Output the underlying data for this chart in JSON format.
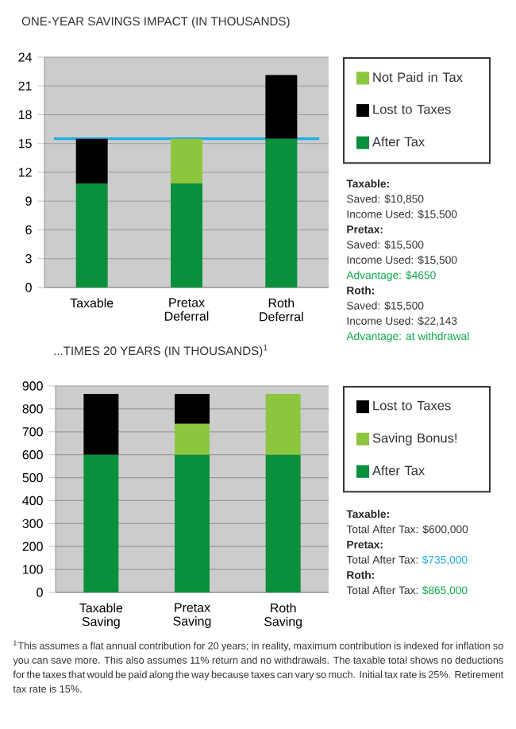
{
  "chart_data": [
    {
      "type": "bar",
      "title": "ONE-YEAR SAVINGS IMPACT (IN THOUSANDS)",
      "stacked": true,
      "grid": "y",
      "legend": "right",
      "categories": [
        "Taxable",
        "Pretax Deferral",
        "Roth Deferral"
      ],
      "series": [
        {
          "name": "After Tax",
          "color": "#0a8f3c",
          "values": [
            10.85,
            10.85,
            15.5
          ]
        },
        {
          "name": "Lost to Taxes",
          "color": "#000000",
          "values": [
            4.65,
            0,
            6.643
          ]
        },
        {
          "name": "Not Paid in Tax",
          "color": "#8cc63f",
          "values": [
            0,
            4.65,
            0
          ]
        }
      ],
      "ylim": [
        0,
        24
      ],
      "yticks": [
        0,
        3,
        6,
        9,
        12,
        15,
        18,
        21,
        24
      ],
      "ref_lines": [
        {
          "axis": "y",
          "value": 15.5,
          "color": "#1aaee5"
        }
      ],
      "annotations": [
        "Taxable:",
        "Saved: $10,850",
        "Income Used: $15,500",
        "Pretax:",
        "Saved: $15,500",
        "Income Used: $15,500",
        "Advantage: $4650",
        "Roth:",
        "Saved: $15,500",
        "Income Used: $22,143",
        "Advantage: at withdrawal"
      ]
    },
    {
      "type": "bar",
      "title": "...TIMES 20 YEARS (IN THOUSANDS)$^{1}$",
      "stacked": true,
      "grid": "y",
      "legend": "right",
      "categories": [
        "Taxable Saving",
        "Pretax Saving",
        "Roth Saving"
      ],
      "series": [
        {
          "name": "After Tax",
          "color": "#0a8f3c",
          "values": [
            600,
            600,
            600
          ]
        },
        {
          "name": "Saving Bonus!",
          "color": "#8cc63f",
          "values": [
            0,
            135,
            265
          ]
        },
        {
          "name": "Lost to Taxes",
          "color": "#000000",
          "values": [
            265,
            130,
            0
          ]
        }
      ],
      "ylim": [
        0,
        900
      ],
      "yticks": [
        0,
        100,
        200,
        300,
        400,
        500,
        600,
        700,
        800,
        900
      ],
      "annotations": [
        "Taxable:",
        "Total After Tax: $600,000",
        "Pretax:",
        "Total After Tax:",
        "$735,000",
        "Roth:",
        "Total After Tax:",
        "$865,000",
        "$^{1}$This assumes a flat annual contribution for 20 years; in reality, maximum contribution is indexed for inflation so you can save more. This also assumes 11% return and no withdrawals. The taxable total shows no deductions for the taxes that would be paid along the way because taxes can vary so much. Initial tax rate is 25%. Retirement tax rate is 15%."
      ]
    }
  ]
}
